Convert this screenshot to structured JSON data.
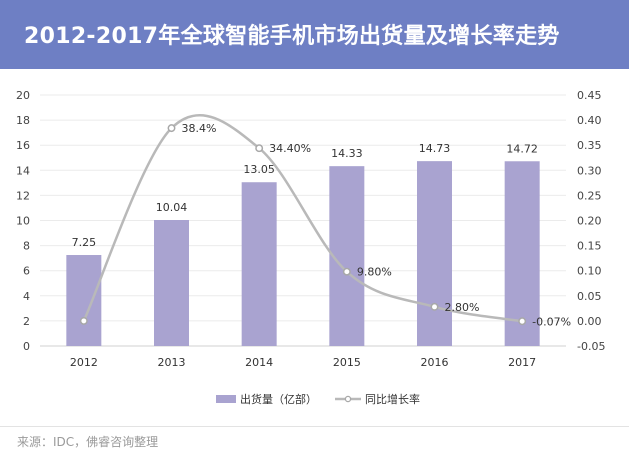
{
  "header": {
    "title": "2012-2017年全球智能手机市场出货量及增长率走势"
  },
  "source": "来源：IDC，佛睿咨询整理",
  "colors": {
    "header_bg": "#6e7fc4",
    "bar": "#a9a3d0",
    "line": "#b9b9b9",
    "marker_fill": "#ffffff",
    "text": "#333333"
  },
  "chart_data": {
    "type": "bar+line",
    "categories": [
      "2012",
      "2013",
      "2014",
      "2015",
      "2016",
      "2017"
    ],
    "series": [
      {
        "name": "出货量（亿部）",
        "type": "bar",
        "axis": "left",
        "values": [
          7.25,
          10.04,
          13.05,
          14.33,
          14.73,
          14.72
        ],
        "labels": [
          "7.25",
          "10.04",
          "13.05",
          "14.33",
          "14.73",
          "14.72"
        ]
      },
      {
        "name": "同比增长率",
        "type": "line",
        "axis": "right",
        "values": [
          0.0,
          0.384,
          0.344,
          0.098,
          0.028,
          -0.0007
        ],
        "labels": [
          "",
          "38.4%",
          "34.40%",
          "9.80%",
          "2.80%",
          "-0.07%"
        ]
      }
    ],
    "left_axis": {
      "min": 0,
      "max": 20,
      "step": 2,
      "ticks": [
        "0",
        "2",
        "4",
        "6",
        "8",
        "10",
        "12",
        "14",
        "16",
        "18",
        "20"
      ]
    },
    "right_axis": {
      "min": -0.05,
      "max": 0.45,
      "step": 0.05,
      "ticks": [
        "-0.05",
        "0.00",
        "0.05",
        "0.10",
        "0.15",
        "0.20",
        "0.25",
        "0.30",
        "0.35",
        "0.40",
        "0.45"
      ]
    },
    "grid": true,
    "legend_position": "bottom"
  }
}
